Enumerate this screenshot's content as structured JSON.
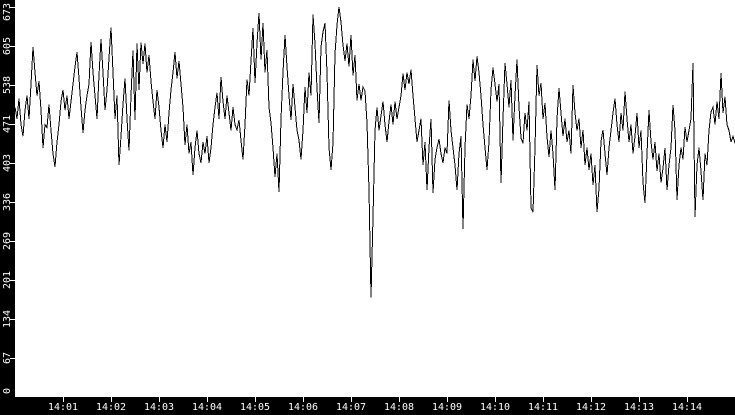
{
  "window": {
    "background_color": "#ffffff",
    "foreground_color": "#000000",
    "axis_background_color": "#000000",
    "axis_text_color": "#ffffff"
  },
  "chart_data": {
    "type": "line",
    "title": "",
    "legend": "none",
    "grid": "off",
    "line_color": "#000000",
    "x_axis_position": "bottom",
    "y_axis_position": "left",
    "y_tick_labels_rotated_degrees": -90,
    "xlabel": "",
    "ylabel": "",
    "x_start_time": "14:00:00",
    "x_step_seconds": 2.5,
    "x_range_minutes": 15,
    "ylim": [
      0,
      673
    ],
    "y_ticks": [
      {
        "value": 0.0,
        "label": "0"
      },
      {
        "value": 67.3,
        "label": "67"
      },
      {
        "value": 134.6,
        "label": "134"
      },
      {
        "value": 201.9,
        "label": "201"
      },
      {
        "value": 269.2,
        "label": "269"
      },
      {
        "value": 336.5,
        "label": "336"
      },
      {
        "value": 403.8,
        "label": "403"
      },
      {
        "value": 471.1,
        "label": "471"
      },
      {
        "value": 538.4,
        "label": "538"
      },
      {
        "value": 605.7,
        "label": "605"
      },
      {
        "value": 673.0,
        "label": "673"
      }
    ],
    "x_ticks": [
      {
        "minute": 1,
        "label": "14:01"
      },
      {
        "minute": 2,
        "label": "14:02"
      },
      {
        "minute": 3,
        "label": "14:03"
      },
      {
        "minute": 4,
        "label": "14:04"
      },
      {
        "minute": 5,
        "label": "14:05"
      },
      {
        "minute": 6,
        "label": "14:06"
      },
      {
        "minute": 7,
        "label": "14:07"
      },
      {
        "minute": 8,
        "label": "14:08"
      },
      {
        "minute": 9,
        "label": "14:09"
      },
      {
        "minute": 10,
        "label": "14:10"
      },
      {
        "minute": 11,
        "label": "14:11"
      },
      {
        "minute": 12,
        "label": "14:12"
      },
      {
        "minute": 13,
        "label": "14:13"
      },
      {
        "minute": 14,
        "label": "14:14"
      }
    ],
    "values": [
      500,
      480,
      515,
      470,
      450,
      495,
      520,
      480,
      540,
      604,
      560,
      520,
      545,
      495,
      430,
      470,
      465,
      505,
      460,
      420,
      397,
      440,
      470,
      510,
      530,
      495,
      520,
      480,
      510,
      540,
      570,
      595,
      550,
      500,
      456,
      495,
      520,
      540,
      613,
      560,
      520,
      480,
      555,
      618,
      560,
      495,
      530,
      585,
      638,
      560,
      480,
      520,
      400,
      450,
      505,
      550,
      480,
      425,
      520,
      598,
      478,
      610,
      530,
      612,
      575,
      610,
      560,
      590,
      545,
      510,
      480,
      530,
      500,
      460,
      430,
      470,
      440,
      490,
      530,
      560,
      595,
      550,
      580,
      540,
      500,
      435,
      470,
      420,
      440,
      383,
      430,
      460,
      420,
      404,
      440,
      420,
      450,
      404,
      430,
      470,
      500,
      525,
      480,
      552,
      510,
      480,
      520,
      490,
      460,
      500,
      470,
      461,
      478,
      443,
      410,
      470,
      548,
      520,
      580,
      637,
      542,
      610,
      663,
      582,
      645,
      560,
      599,
      500,
      473,
      430,
      380,
      420,
      354,
      480,
      560,
      625,
      570,
      520,
      478,
      540,
      500,
      460,
      443,
      410,
      460,
      535,
      490,
      560,
      520,
      660,
      610,
      533,
      473,
      604,
      630,
      645,
      560,
      430,
      392,
      438,
      592,
      642,
      673,
      647,
      607,
      580,
      610,
      570,
      625,
      555,
      590,
      512,
      540,
      512,
      535,
      528,
      473,
      357,
      172,
      310,
      460,
      500,
      460,
      485,
      510,
      470,
      440,
      475,
      505,
      470,
      510,
      480,
      500,
      520,
      558,
      530,
      560,
      540,
      565,
      520,
      480,
      440,
      460,
      480,
      400,
      440,
      357,
      430,
      480,
      352,
      410,
      430,
      445,
      420,
      404,
      430,
      420,
      512,
      460,
      430,
      400,
      357,
      420,
      450,
      290,
      430,
      505,
      480,
      520,
      582,
      545,
      588,
      560,
      520,
      470,
      430,
      392,
      440,
      530,
      568,
      540,
      510,
      540,
      369,
      480,
      576,
      540,
      500,
      547,
      443,
      520,
      582,
      500,
      447,
      438,
      490,
      460,
      510,
      326,
      319,
      430,
      573,
      520,
      542,
      480,
      507,
      449,
      414,
      460,
      420,
      357,
      480,
      533,
      490,
      450,
      480,
      440,
      460,
      420,
      538,
      490,
      460,
      480,
      430,
      461,
      400,
      430,
      392,
      420,
      366,
      400,
      319,
      360,
      441,
      461,
      420,
      383,
      430,
      460,
      490,
      515,
      470,
      440,
      490,
      460,
      527,
      480,
      440,
      470,
      420,
      450,
      490,
      430,
      460,
      370,
      335,
      420,
      495,
      440,
      410,
      440,
      390,
      420,
      370,
      395,
      430,
      357,
      400,
      430,
      504,
      460,
      340,
      400,
      430,
      410,
      466,
      440,
      460,
      480,
      576,
      311,
      400,
      430,
      390,
      340,
      420,
      400,
      460,
      492,
      500,
      470,
      510,
      480,
      559,
      490,
      518,
      470,
      460,
      440,
      450,
      438
    ]
  }
}
